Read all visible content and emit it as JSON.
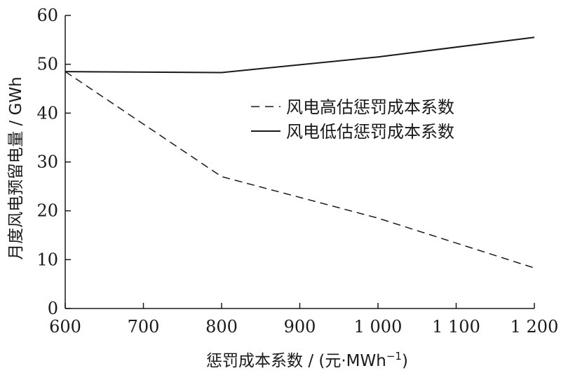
{
  "chart_data": {
    "type": "line",
    "xlabel": "惩罚成本系数 / (元·MWh",
    "xlabel_sup": "−1",
    "xlabel_close": ")",
    "ylabel": "月度风电预留电量 / GWh",
    "xlim": [
      600,
      1200
    ],
    "ylim": [
      0,
      60
    ],
    "x_ticks": [
      600,
      700,
      800,
      900,
      1000,
      1100,
      1200
    ],
    "x_tick_labels": [
      "600",
      "700",
      "800",
      "900",
      "1 000",
      "1 100",
      "1 200"
    ],
    "y_ticks": [
      0,
      10,
      20,
      30,
      40,
      50,
      60
    ],
    "y_tick_labels": [
      "0",
      "10",
      "20",
      "30",
      "40",
      "50",
      "60"
    ],
    "grid": false,
    "legend_position": "center-right",
    "series": [
      {
        "name": "风电高估惩罚成本系数",
        "line_style": "dashed",
        "color": "#1a1a1a",
        "x": [
          600,
          800,
          1000,
          1200
        ],
        "values": [
          48.5,
          27.0,
          18.5,
          8.3
        ]
      },
      {
        "name": "风电低估惩罚成本系数",
        "line_style": "solid",
        "color": "#1a1a1a",
        "x": [
          600,
          800,
          1000,
          1200
        ],
        "values": [
          48.5,
          48.3,
          51.5,
          55.5
        ]
      }
    ]
  }
}
